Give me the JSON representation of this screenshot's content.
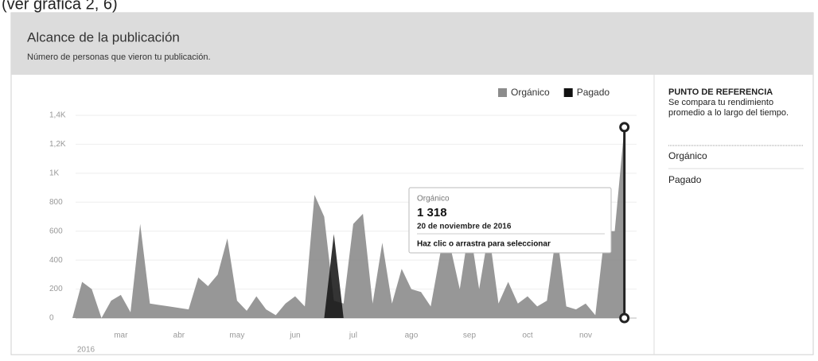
{
  "caption": "(ver gráfica 2, 6)",
  "chart_data": {
    "type": "area",
    "title": "Alcance de la publicación",
    "subtitle": "Número de personas que vieron tu publicación.",
    "categories": [
      null,
      null,
      null,
      null,
      null,
      "mar",
      null,
      null,
      null,
      null,
      null,
      "abr",
      null,
      null,
      null,
      null,
      null,
      "may",
      null,
      null,
      null,
      null,
      null,
      "jun",
      null,
      null,
      null,
      null,
      null,
      "jul",
      null,
      null,
      null,
      null,
      null,
      "ago",
      null,
      null,
      null,
      null,
      null,
      "sep",
      null,
      null,
      null,
      null,
      null,
      "oct",
      null,
      null,
      null,
      null,
      null,
      "nov",
      null,
      null,
      null,
      null
    ],
    "year_label": "2016",
    "series": [
      {
        "name": "Orgánico",
        "color": "#8c8c8c",
        "values": [
          0,
          250,
          200,
          0,
          120,
          160,
          40,
          650,
          100,
          90,
          80,
          70,
          60,
          280,
          220,
          300,
          550,
          120,
          50,
          150,
          60,
          20,
          100,
          150,
          80,
          850,
          700,
          120,
          100,
          650,
          720,
          100,
          520,
          100,
          340,
          200,
          180,
          80,
          450,
          500,
          200,
          640,
          200,
          600,
          100,
          250,
          100,
          150,
          80,
          120,
          600,
          80,
          60,
          100,
          20,
          600,
          600,
          1318
        ],
        "value_labels": [
          null,
          null,
          null,
          null,
          null,
          null,
          null,
          null,
          null,
          null,
          null,
          null,
          null,
          null,
          null,
          null,
          null,
          null,
          null,
          null,
          null,
          null,
          null,
          null,
          null,
          null,
          null,
          null,
          null,
          null,
          null,
          null,
          null,
          null,
          null,
          null,
          null,
          null,
          null,
          null,
          null,
          null,
          null,
          null,
          null,
          null,
          null,
          null,
          null,
          null,
          null,
          null,
          null,
          null,
          null,
          null,
          null,
          "1 318"
        ]
      },
      {
        "name": "Pagado",
        "color": "#111111",
        "values": [
          0,
          0,
          0,
          0,
          0,
          0,
          0,
          0,
          0,
          0,
          0,
          0,
          0,
          0,
          0,
          0,
          0,
          0,
          0,
          0,
          0,
          0,
          0,
          0,
          0,
          0,
          0,
          580,
          0,
          0,
          0,
          0,
          0,
          0,
          0,
          0,
          0,
          0,
          0,
          0,
          0,
          0,
          0,
          0,
          0,
          0,
          0,
          0,
          0,
          0,
          0,
          0,
          0,
          0,
          0,
          0,
          0,
          0
        ]
      }
    ],
    "ylim": [
      0,
      1400
    ],
    "yticks": [
      0,
      200,
      400,
      600,
      800,
      {
        "value": 1000,
        "label": "1K"
      },
      {
        "value": 1200,
        "label": "1,2K"
      },
      {
        "value": 1400,
        "label": "1,4K"
      }
    ],
    "grid": true,
    "legend": "top-right",
    "tooltip": {
      "date": "20 de noviembre de 2016",
      "hint": "Haz clic o arrastra para seleccionar"
    },
    "side_panel": {
      "title": "PUNTO DE REFERENCIA",
      "description": "Se compara tu rendimiento promedio a lo largo del tiempo.",
      "items": [
        "Orgánico",
        "Pagado"
      ]
    }
  }
}
